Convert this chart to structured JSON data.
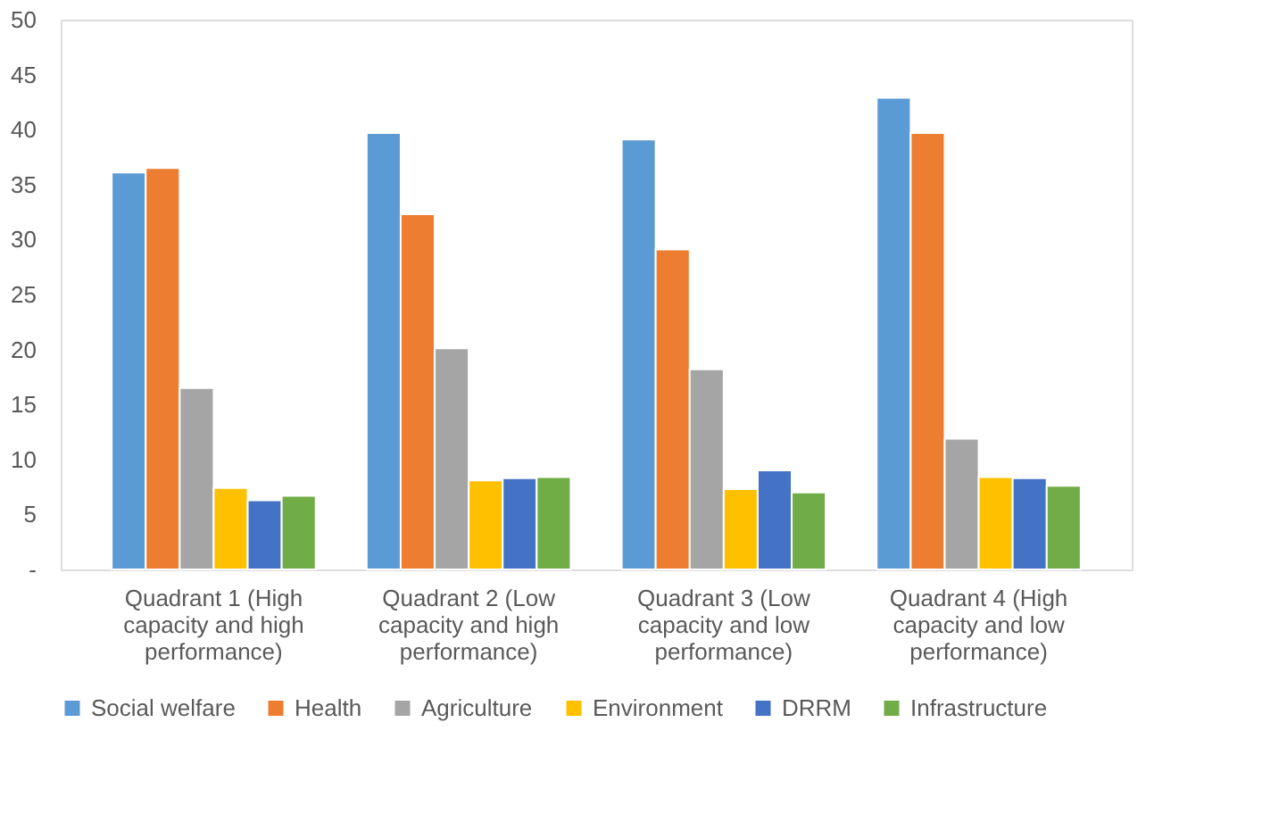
{
  "chart_data": {
    "type": "bar",
    "categories": [
      "Quadrant 1 (High capacity and high performance)",
      "Quadrant 2 (Low capacity and high performance)",
      "Quadrant 3 (Low capacity and low performance)",
      "Quadrant 4 (High capacity and low performance)"
    ],
    "series": [
      {
        "name": "Social welfare",
        "color": "#5b9bd5",
        "values": [
          36.1,
          39.7,
          39.1,
          42.9
        ]
      },
      {
        "name": "Health",
        "color": "#ed7d31",
        "values": [
          36.5,
          32.3,
          29.1,
          39.7
        ]
      },
      {
        "name": "Agriculture",
        "color": "#a5a5a5",
        "values": [
          16.5,
          20.1,
          18.2,
          11.9
        ]
      },
      {
        "name": "Environment",
        "color": "#ffc000",
        "values": [
          7.4,
          8.1,
          7.3,
          8.4
        ]
      },
      {
        "name": "DRRM",
        "color": "#4472c4",
        "values": [
          6.3,
          8.3,
          9.0,
          8.3
        ]
      },
      {
        "name": "Infrastructure",
        "color": "#70ad47",
        "values": [
          6.7,
          8.4,
          7.0,
          7.6
        ]
      }
    ],
    "ylim": [
      0,
      50
    ],
    "yticks": [
      {
        "value": 0,
        "label": "-"
      },
      5,
      10,
      15,
      20,
      25,
      30,
      35,
      40,
      45,
      50
    ],
    "grid": false,
    "legend": "bottom"
  }
}
